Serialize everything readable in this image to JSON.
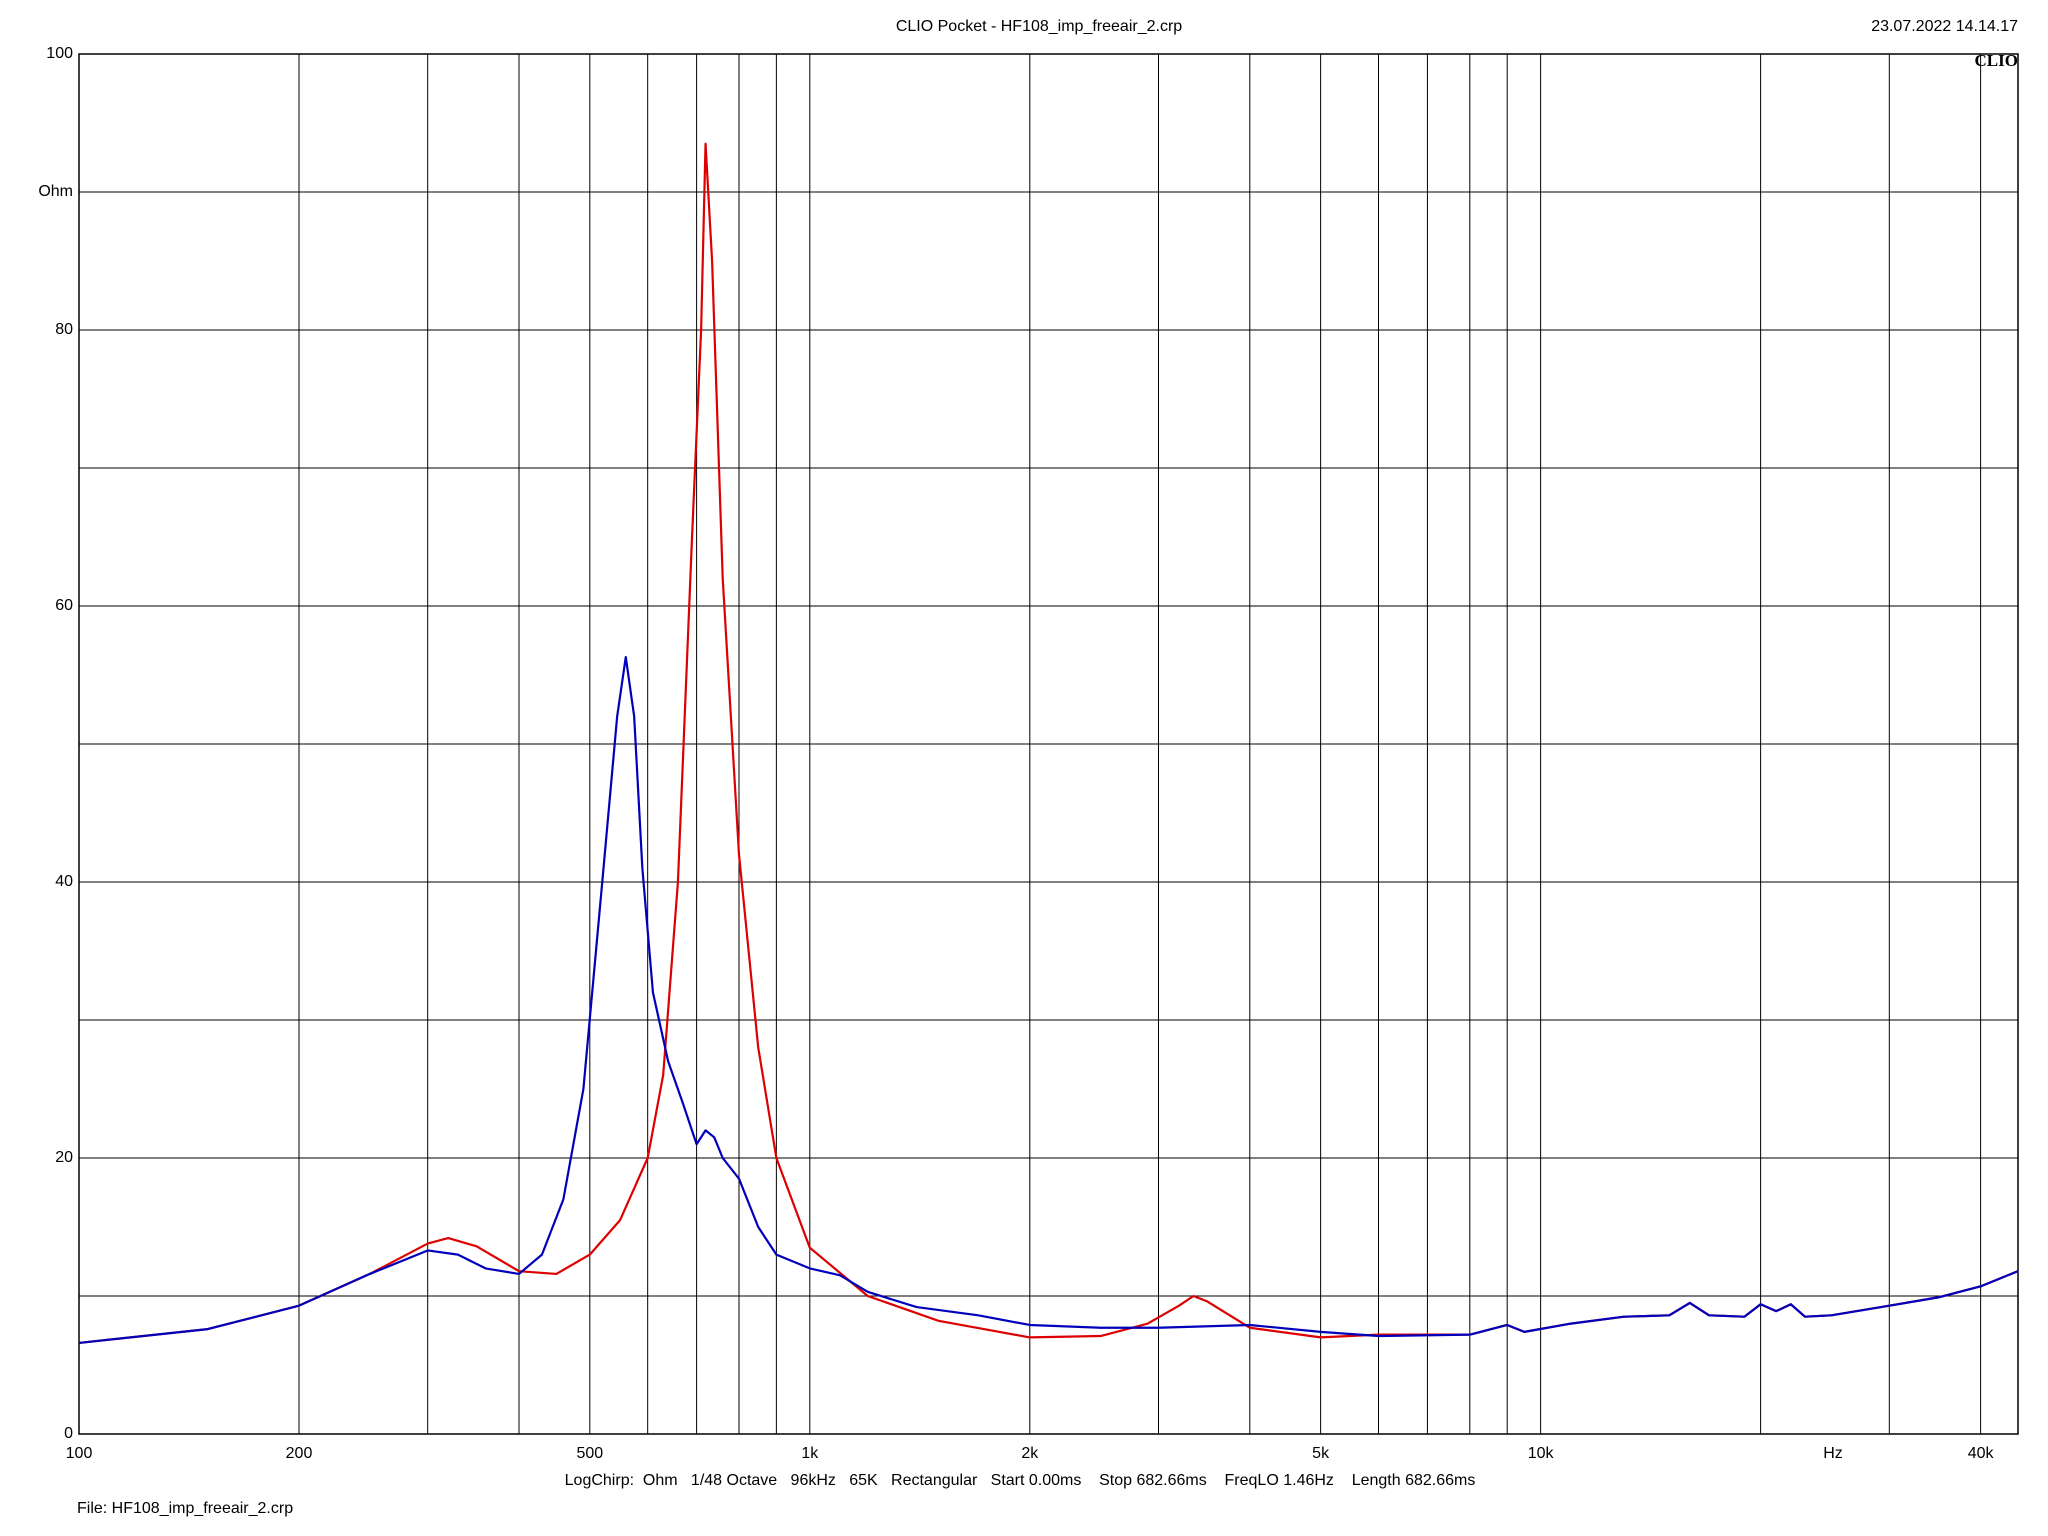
{
  "chart_data": {
    "type": "line",
    "title": "CLIO Pocket - HF108_imp_freeair_2.crp",
    "date": "23.07.2022 14.14.17",
    "logo": "CLIO",
    "x_unit": "Hz",
    "settings": "LogChirp:  Ohm   1/48 Octave   96kHz   65K   Rectangular   Start 0.00ms    Stop 682.66ms    FreqLO 1.46Hz    Length 682.66ms",
    "file": "File: HF108_imp_freeair_2.crp",
    "xscale": "log",
    "grid": true,
    "xlim": [
      100,
      45000
    ],
    "xticks": [
      100,
      200,
      500,
      {
        "value": 1000,
        "label": "1k"
      },
      {
        "value": 2000,
        "label": "2k"
      },
      {
        "value": 5000,
        "label": "5k"
      },
      {
        "value": 10000,
        "label": "10k"
      },
      {
        "value": 40000,
        "label": "40k"
      }
    ],
    "xgrid": [
      300,
      400,
      600,
      700,
      800,
      900,
      3000,
      4000,
      6000,
      7000,
      8000,
      9000,
      20000,
      30000
    ],
    "ylim": [
      0,
      100
    ],
    "yticks": [
      0,
      20,
      40,
      60,
      80,
      {
        "value": 90,
        "label": "Ohm"
      },
      100
    ],
    "ygrid": [
      10,
      30,
      50,
      70
    ],
    "series": [
      {
        "color": "#dd0000",
        "x": [
          100,
          150,
          200,
          250,
          300,
          320,
          350,
          400,
          450,
          500,
          550,
          600,
          630,
          660,
          690,
          710,
          720,
          735,
          760,
          800,
          850,
          900,
          1000,
          1200,
          1500,
          2000,
          2500,
          2900,
          3200,
          3350,
          3500,
          4000,
          5000,
          6000,
          8000,
          9000,
          9500,
          11000,
          13000,
          15000,
          16000,
          17000,
          19000,
          20000,
          21000,
          22000,
          23000,
          25000,
          30000,
          35000,
          40000,
          45000
        ],
        "values": [
          6.6,
          7.6,
          9.3,
          11.6,
          13.8,
          14.2,
          13.6,
          11.8,
          11.6,
          13,
          15.5,
          20,
          26,
          40,
          65,
          80,
          93.5,
          85,
          62,
          42,
          28,
          20,
          13.5,
          10,
          8.2,
          7.0,
          7.1,
          8.0,
          9.3,
          10,
          9.6,
          7.7,
          7.0,
          7.2,
          7.2,
          7.9,
          7.4,
          8.0,
          8.5,
          8.6,
          9.5,
          8.6,
          8.5,
          9.4,
          8.9,
          9.4,
          8.5,
          8.6,
          9.3,
          9.9,
          10.7,
          11.8
        ]
      },
      {
        "color": "#0000bb",
        "x": [
          100,
          150,
          200,
          250,
          300,
          330,
          360,
          400,
          430,
          460,
          490,
          520,
          545,
          560,
          575,
          590,
          610,
          640,
          670,
          700,
          720,
          740,
          760,
          800,
          850,
          900,
          1000,
          1100,
          1200,
          1400,
          1700,
          2000,
          2500,
          3000,
          4000,
          5000,
          6000,
          8000,
          9000,
          9500,
          11000,
          13000,
          15000,
          16000,
          17000,
          19000,
          20000,
          21000,
          22000,
          23000,
          25000,
          30000,
          35000,
          40000,
          45000
        ],
        "values": [
          6.6,
          7.6,
          9.3,
          11.6,
          13.3,
          13.0,
          12.0,
          11.6,
          13,
          17,
          25,
          40,
          52,
          56.3,
          52,
          41,
          32,
          27,
          24,
          21,
          22,
          21.5,
          20,
          18.5,
          15,
          13,
          12,
          11.5,
          10.3,
          9.2,
          8.6,
          7.9,
          7.7,
          7.7,
          7.9,
          7.4,
          7.1,
          7.2,
          7.9,
          7.4,
          8.0,
          8.5,
          8.6,
          9.5,
          8.6,
          8.5,
          9.4,
          8.9,
          9.4,
          8.5,
          8.6,
          9.3,
          9.9,
          10.7,
          11.8
        ]
      }
    ]
  }
}
